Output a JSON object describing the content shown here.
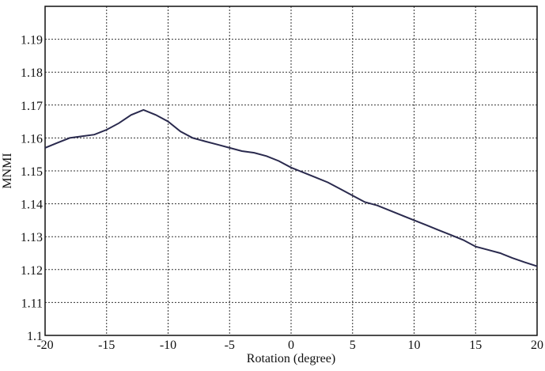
{
  "chart_data": {
    "type": "line",
    "title": "",
    "xlabel": "Rotation (degree)",
    "ylabel": "MNMI",
    "xlim": [
      -20,
      20
    ],
    "ylim": [
      1.1,
      1.2
    ],
    "xticks": [
      "-20",
      "-15",
      "-10",
      "-5",
      "0",
      "5",
      "10",
      "15",
      "20"
    ],
    "yticks": [
      "1.1",
      "1.11",
      "1.12",
      "1.13",
      "1.14",
      "1.15",
      "1.16",
      "1.17",
      "1.18",
      "1.19"
    ],
    "grid": true,
    "line_color": "#2a2a4e",
    "series": [
      {
        "x": [
          -20,
          -19,
          -18,
          -17,
          -16,
          -15,
          -14,
          -13,
          -12,
          -11,
          -10,
          -9,
          -8,
          -7,
          -6,
          -5,
          -4,
          -3,
          -2,
          -1,
          0,
          1,
          2,
          3,
          4,
          5,
          6,
          7,
          8,
          9,
          10,
          11,
          12,
          13,
          14,
          15,
          16,
          17,
          18,
          19,
          20
        ],
        "y": [
          1.157,
          1.1585,
          1.16,
          1.1605,
          1.161,
          1.1625,
          1.1645,
          1.167,
          1.1685,
          1.167,
          1.165,
          1.162,
          1.16,
          1.159,
          1.158,
          1.157,
          1.156,
          1.1555,
          1.1545,
          1.153,
          1.151,
          1.1495,
          1.148,
          1.1465,
          1.1445,
          1.1425,
          1.1405,
          1.1395,
          1.138,
          1.1365,
          1.135,
          1.1335,
          1.132,
          1.1305,
          1.129,
          1.127,
          1.126,
          1.125,
          1.1235,
          1.1222,
          1.121
        ]
      }
    ]
  }
}
